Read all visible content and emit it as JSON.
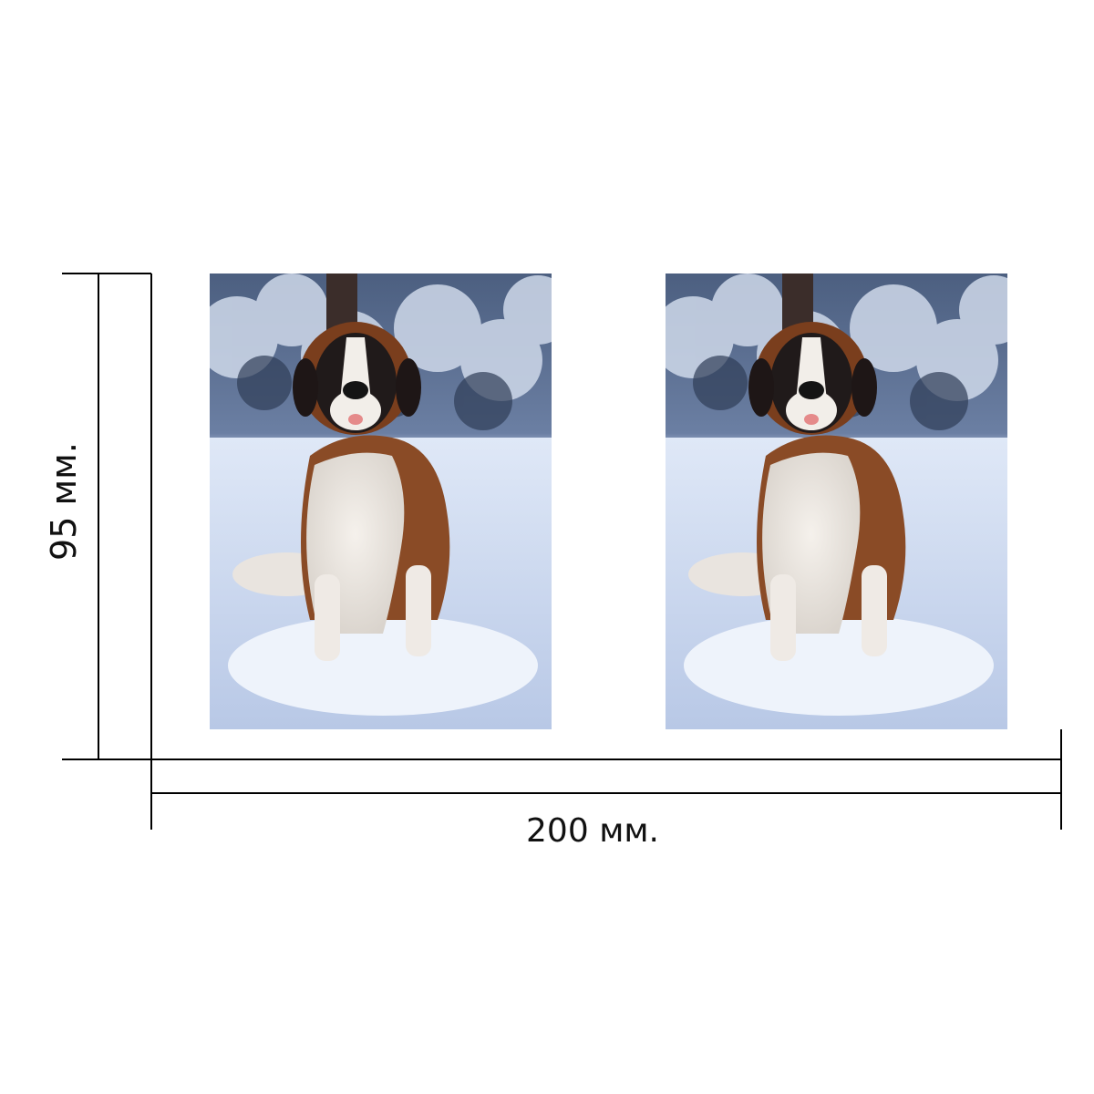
{
  "dimensions": {
    "width_label": "200 мм.",
    "height_label": "95 мм."
  },
  "photos": [
    {
      "subject": "saint-bernard-dog-in-snow"
    },
    {
      "subject": "saint-bernard-dog-in-snow"
    }
  ],
  "colors": {
    "line": "#000000",
    "snow": "#e8eef8",
    "forest": "#2b3a55"
  }
}
